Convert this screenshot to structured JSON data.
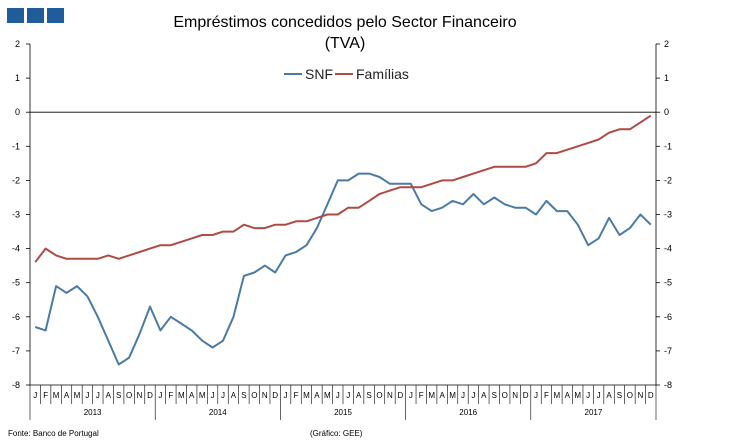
{
  "header": {
    "decor_color": "#1f5c99",
    "title_line1": "Empréstimos concedidos pelo Sector Financeiro",
    "title_line2": "(TVA)"
  },
  "footer": {
    "source": "Fonte: Banco de Portugal",
    "credit": "(Gráfico: GEE)"
  },
  "chart_data": {
    "type": "line",
    "title": "Empréstimos concedidos pelo Sector Financeiro (TVA)",
    "xlabel": "",
    "ylabel": "",
    "ylim": [
      -8,
      2
    ],
    "yticks": [
      2,
      1,
      0,
      -1,
      -2,
      -3,
      -4,
      -5,
      -6,
      -7,
      -8
    ],
    "grid": false,
    "legend_position": "top-center",
    "month_labels": [
      "J",
      "F",
      "M",
      "A",
      "M",
      "J",
      "J",
      "A",
      "S",
      "O",
      "N",
      "D"
    ],
    "years": [
      "2013",
      "2014",
      "2015",
      "2016",
      "2017"
    ],
    "series": [
      {
        "name": "SNF",
        "color": "#4a7ba7",
        "values": [
          -6.3,
          -6.4,
          -5.1,
          -5.3,
          -5.1,
          -5.4,
          -6.0,
          -6.7,
          -7.4,
          -7.2,
          -6.5,
          -5.7,
          -6.4,
          -6.0,
          -6.2,
          -6.4,
          -6.7,
          -6.9,
          -6.7,
          -6.0,
          -4.8,
          -4.7,
          -4.5,
          -4.7,
          -4.2,
          -4.1,
          -3.9,
          -3.4,
          -2.7,
          -2.0,
          -2.0,
          -1.8,
          -1.8,
          -1.9,
          -2.1,
          -2.1,
          -2.1,
          -2.7,
          -2.9,
          -2.8,
          -2.6,
          -2.7,
          -2.4,
          -2.7,
          -2.5,
          -2.7,
          -2.8,
          -2.8,
          -3.0,
          -2.6,
          -2.9,
          -2.9,
          -3.3,
          -3.9,
          -3.7,
          -3.1,
          -3.6,
          -3.4,
          -3.0,
          -3.3
        ]
      },
      {
        "name": "Famílias",
        "color": "#b04a44",
        "values": [
          -4.4,
          -4.0,
          -4.2,
          -4.3,
          -4.3,
          -4.3,
          -4.3,
          -4.2,
          -4.3,
          -4.2,
          -4.1,
          -4.0,
          -3.9,
          -3.9,
          -3.8,
          -3.7,
          -3.6,
          -3.6,
          -3.5,
          -3.5,
          -3.3,
          -3.4,
          -3.4,
          -3.3,
          -3.3,
          -3.2,
          -3.2,
          -3.1,
          -3.0,
          -3.0,
          -2.8,
          -2.8,
          -2.6,
          -2.4,
          -2.3,
          -2.2,
          -2.2,
          -2.2,
          -2.1,
          -2.0,
          -2.0,
          -1.9,
          -1.8,
          -1.7,
          -1.6,
          -1.6,
          -1.6,
          -1.6,
          -1.5,
          -1.2,
          -1.2,
          -1.1,
          -1.0,
          -0.9,
          -0.8,
          -0.6,
          -0.5,
          -0.5,
          -0.3,
          -0.1
        ]
      }
    ]
  }
}
